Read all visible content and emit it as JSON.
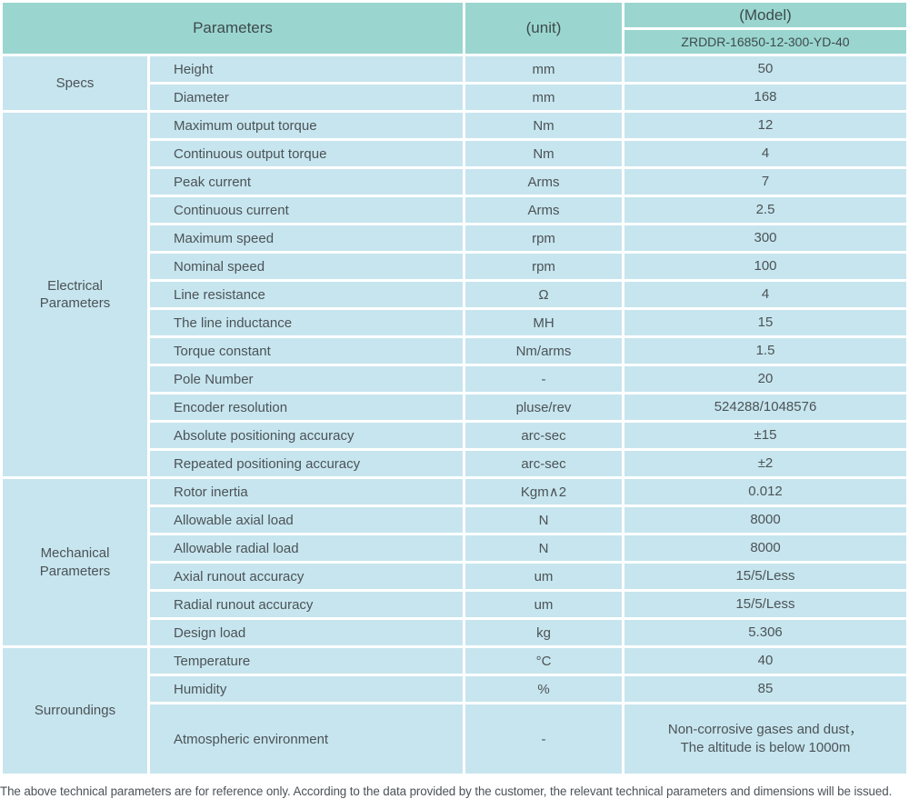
{
  "colors": {
    "header-bg": "#9ad6cf",
    "cell-bg": "#c7e5ee",
    "header-text": "#3e4a4c",
    "text": "#4b5357",
    "separator": "#ffffff"
  },
  "table": {
    "header": {
      "parameters_label": "Parameters",
      "unit_label": "(unit)",
      "model_label": "(Model)",
      "model_value": "ZRDDR-16850-12-300-YD-40"
    },
    "sections": [
      {
        "group": "Specs",
        "rows": [
          {
            "name": "Height",
            "unit": "mm",
            "value": "50"
          },
          {
            "name": "Diameter",
            "unit": "mm",
            "value": "168"
          }
        ]
      },
      {
        "group": "Electrical\nParameters",
        "rows": [
          {
            "name": "Maximum output torque",
            "unit": "Nm",
            "value": "12"
          },
          {
            "name": "Continuous output torque",
            "unit": "Nm",
            "value": "4"
          },
          {
            "name": "Peak current",
            "unit": "Arms",
            "value": "7"
          },
          {
            "name": "Continuous current",
            "unit": "Arms",
            "value": "2.5"
          },
          {
            "name": "Maximum speed",
            "unit": "rpm",
            "value": "300"
          },
          {
            "name": "Nominal speed",
            "unit": "rpm",
            "value": "100"
          },
          {
            "name": "Line resistance",
            "unit": "Ω",
            "value": "4"
          },
          {
            "name": "The line inductance",
            "unit": "MH",
            "value": "15"
          },
          {
            "name": "Torque constant",
            "unit": "Nm/arms",
            "value": "1.5"
          },
          {
            "name": "Pole Number",
            "unit": "-",
            "value": "20"
          },
          {
            "name": "Encoder resolution",
            "unit": "pluse/rev",
            "value": "524288/1048576"
          },
          {
            "name": "Absolute positioning accuracy",
            "unit": "arc-sec",
            "value": "±15"
          },
          {
            "name": "Repeated positioning accuracy",
            "unit": "arc-sec",
            "value": "±2"
          }
        ]
      },
      {
        "group": "Mechanical\nParameters",
        "rows": [
          {
            "name": "Rotor inertia",
            "unit": "Kgm∧2",
            "value": "0.012"
          },
          {
            "name": "Allowable axial load",
            "unit": "N",
            "value": "8000"
          },
          {
            "name": "Allowable radial load",
            "unit": "N",
            "value": "8000"
          },
          {
            "name": "Axial runout accuracy",
            "unit": "um",
            "value": "15/5/Less"
          },
          {
            "name": "Radial runout accuracy",
            "unit": "um",
            "value": "15/5/Less"
          },
          {
            "name": "Design load",
            "unit": "kg",
            "value": "5.306"
          }
        ]
      },
      {
        "group": "Surroundings",
        "rows": [
          {
            "name": "Temperature",
            "unit": "°C",
            "value": "40"
          },
          {
            "name": "Humidity",
            "unit": "%",
            "value": "85"
          },
          {
            "name": "Atmospheric environment",
            "unit": "-",
            "value": "Non-corrosive gases and dust，\nThe altitude is below 1000m",
            "tall": true
          }
        ]
      }
    ]
  },
  "footnote": "The above technical parameters are for reference only. According to the data provided by the customer, the relevant technical parameters and dimensions will be issued."
}
